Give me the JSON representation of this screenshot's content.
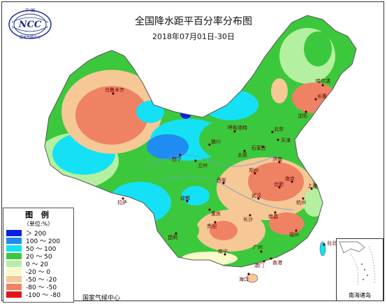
{
  "header": {
    "title": "全国降水距平百分率分布图",
    "date_range": "2018年07月01日-30日"
  },
  "logo": {
    "text": "NCC",
    "top_text": "中 国",
    "ring_text": "国家气候中心"
  },
  "legend": {
    "title": "图 例",
    "unit": "（单位:%）",
    "items": [
      {
        "label": "＞ 200",
        "color": "#0a1ee6"
      },
      {
        "label": "100 ～ 200",
        "color": "#1e8cf0"
      },
      {
        "label": "50 ～ 100",
        "color": "#14e1f5"
      },
      {
        "label": "20 ～ 50",
        "color": "#3cc83c"
      },
      {
        "label": "0 ～ 20",
        "color": "#b4f0a0"
      },
      {
        "label": "-20 ～ 0",
        "color": "#fafac8"
      },
      {
        "label": "-50 ～ -20",
        "color": "#f5c896"
      },
      {
        "label": "-80 ～ -50",
        "color": "#f08264"
      },
      {
        "label": "-100 ～ -80",
        "color": "#e61414"
      }
    ]
  },
  "footer": {
    "credit": "国家气候中心"
  },
  "inset": {
    "caption": "南海诸岛"
  },
  "cities": [
    {
      "name": "乌鲁木齐"
    },
    {
      "name": "呼和浩特"
    },
    {
      "name": "北京"
    },
    {
      "name": "天津"
    },
    {
      "name": "石家庄"
    },
    {
      "name": "太原"
    },
    {
      "name": "银川"
    },
    {
      "name": "西宁"
    },
    {
      "name": "兰州"
    },
    {
      "name": "拉萨"
    },
    {
      "name": "成都"
    },
    {
      "name": "重庆"
    },
    {
      "name": "西安"
    },
    {
      "name": "郑州"
    },
    {
      "name": "济南"
    },
    {
      "name": "武汉"
    },
    {
      "name": "长沙"
    },
    {
      "name": "南昌"
    },
    {
      "name": "合肥"
    },
    {
      "name": "南京"
    },
    {
      "name": "上海"
    },
    {
      "name": "杭州"
    },
    {
      "name": "福州"
    },
    {
      "name": "广州"
    },
    {
      "name": "南宁"
    },
    {
      "name": "贵阳"
    },
    {
      "name": "昆明"
    },
    {
      "name": "海口"
    },
    {
      "name": "长春"
    },
    {
      "name": "沈阳"
    },
    {
      "name": "哈尔滨"
    },
    {
      "name": "台北"
    },
    {
      "name": "香港"
    },
    {
      "name": "澳门"
    }
  ]
}
